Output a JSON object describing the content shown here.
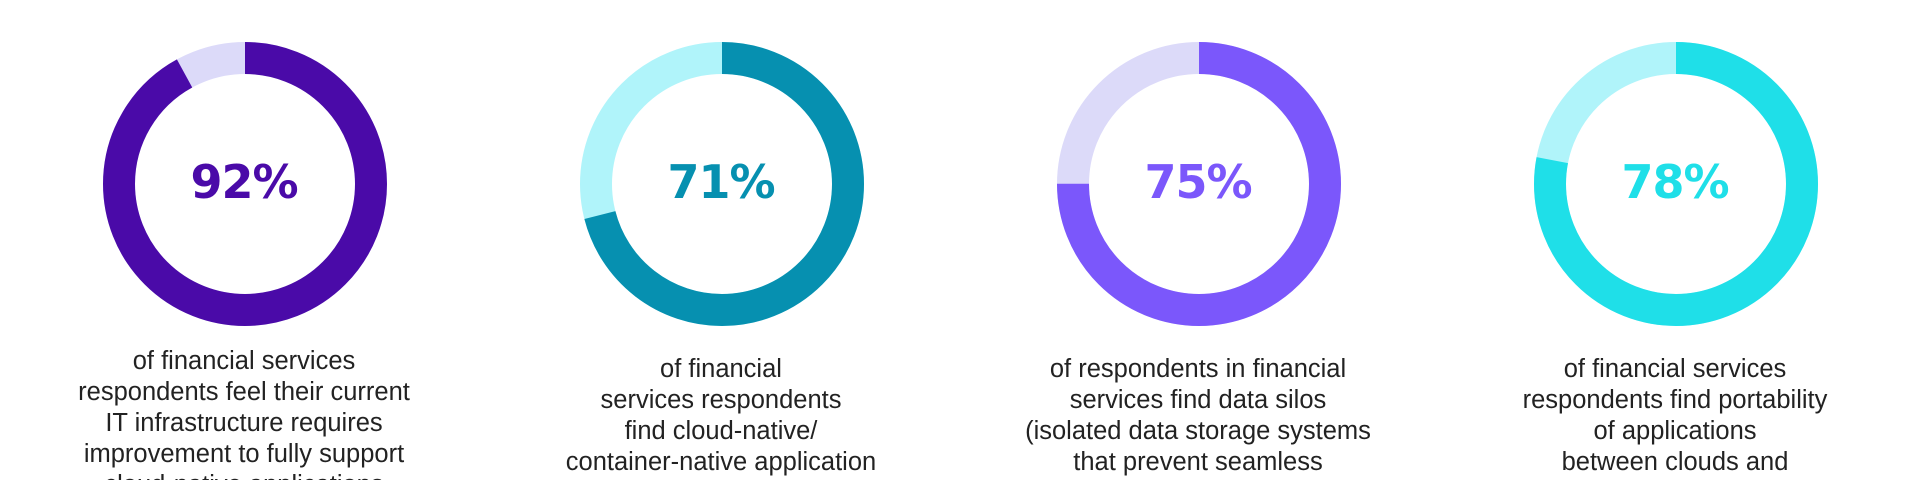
{
  "chart_data": [
    {
      "type": "donut",
      "value": 92,
      "label": "92%",
      "color": "#4a0aa8",
      "track_color": "#dcdaf9",
      "description_lines": [
        "of financial services",
        "respondents feel their current",
        "IT infrastructure requires",
        "improvement to fully support",
        "cloud-native applications"
      ]
    },
    {
      "type": "donut",
      "value": 71,
      "label": "71%",
      "color": "#0690b0",
      "track_color": "#b0f4fa",
      "description_lines": [
        "of financial",
        "services respondents",
        "find cloud-native/",
        "container-native application"
      ]
    },
    {
      "type": "donut",
      "value": 75,
      "label": "75%",
      "color": "#7b57fb",
      "track_color": "#dcdaf9",
      "description_lines": [
        "of respondents in financial",
        "services find data silos",
        "(isolated data storage systems",
        "that prevent seamless"
      ]
    },
    {
      "type": "donut",
      "value": 78,
      "label": "78%",
      "color": "#1fdfe8",
      "track_color": "#b0f4fa",
      "description_lines": [
        "of financial services",
        "respondents find portability",
        "of applications",
        "between clouds and"
      ]
    }
  ]
}
